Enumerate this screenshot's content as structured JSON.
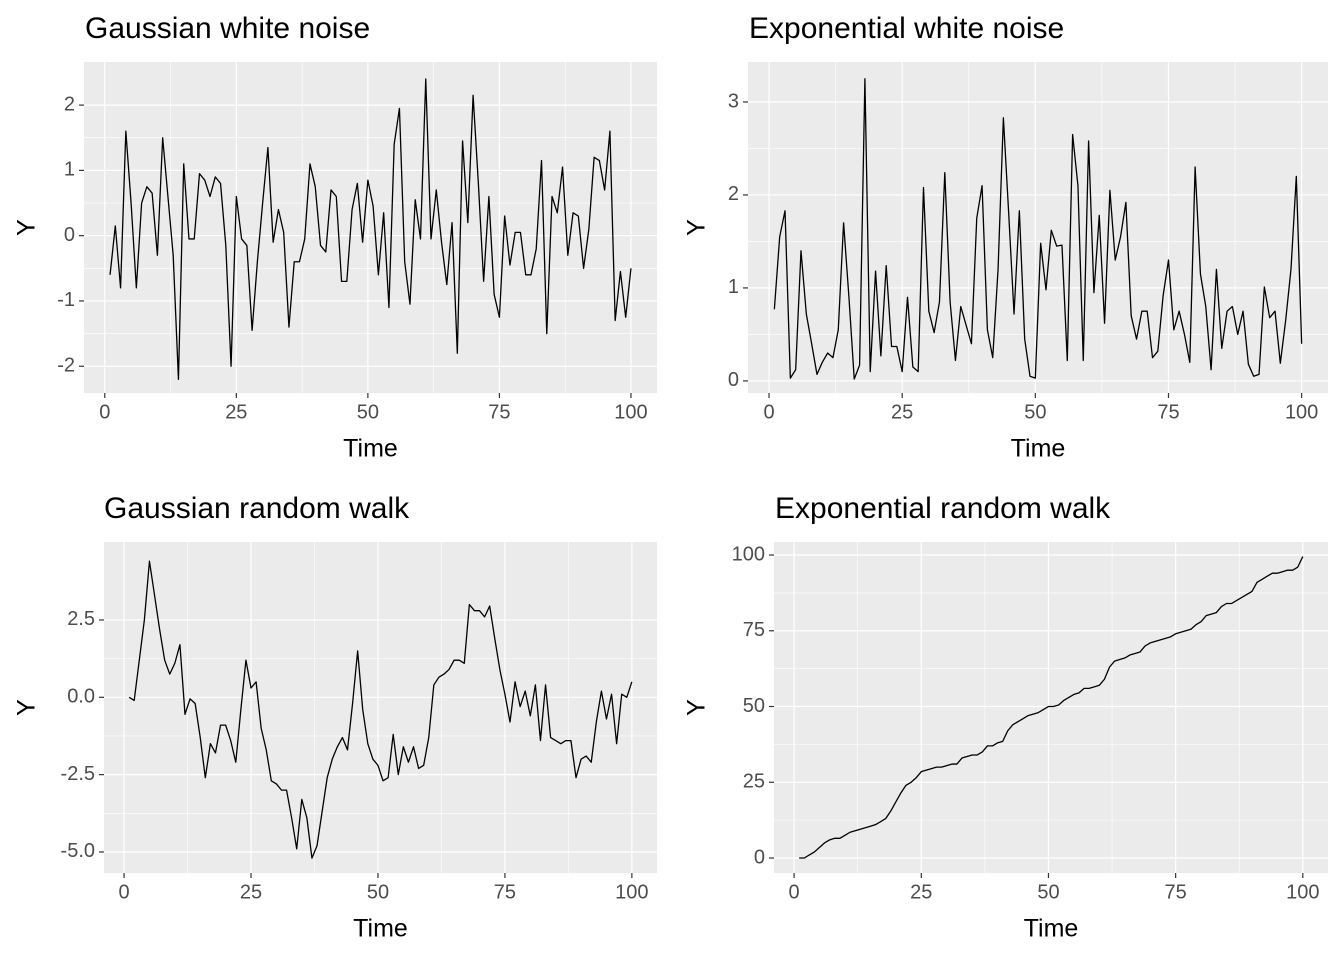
{
  "chart_data": [
    {
      "type": "line",
      "title": "Gaussian white noise",
      "x_label": "Time",
      "y_label": "Y",
      "color": "#000000",
      "grid": true,
      "x": [
        1,
        2,
        3,
        4,
        5,
        6,
        7,
        8,
        9,
        10,
        11,
        12,
        13,
        14,
        15,
        16,
        17,
        18,
        19,
        20,
        21,
        22,
        23,
        24,
        25,
        26,
        27,
        28,
        29,
        30,
        31,
        32,
        33,
        34,
        35,
        36,
        37,
        38,
        39,
        40,
        41,
        42,
        43,
        44,
        45,
        46,
        47,
        48,
        49,
        50,
        51,
        52,
        53,
        54,
        55,
        56,
        57,
        58,
        59,
        60,
        61,
        62,
        63,
        64,
        65,
        66,
        67,
        68,
        69,
        70,
        71,
        72,
        73,
        74,
        75,
        76,
        77,
        78,
        79,
        80,
        81,
        82,
        83,
        84,
        85,
        86,
        87,
        88,
        89,
        90,
        91,
        92,
        93,
        94,
        95,
        96,
        97,
        98,
        99,
        100
      ],
      "values": [
        -0.6,
        0.15,
        -0.8,
        1.6,
        0.5,
        -0.8,
        0.5,
        0.75,
        0.65,
        -0.3,
        1.5,
        0.6,
        -0.3,
        -2.2,
        1.1,
        -0.05,
        -0.05,
        0.95,
        0.85,
        0.6,
        0.9,
        0.8,
        -0.15,
        -2.0,
        0.6,
        -0.05,
        -0.15,
        -1.45,
        -0.4,
        0.5,
        1.35,
        -0.1,
        0.4,
        0.05,
        -1.4,
        -0.4,
        -0.4,
        -0.05,
        1.1,
        0.75,
        -0.15,
        -0.25,
        0.7,
        0.6,
        -0.7,
        -0.7,
        0.4,
        0.8,
        -0.1,
        0.85,
        0.45,
        -0.6,
        0.35,
        -1.1,
        1.4,
        1.95,
        -0.4,
        -1.05,
        0.55,
        -0.05,
        2.4,
        -0.05,
        0.7,
        -0.1,
        -0.75,
        0.2,
        -1.8,
        1.45,
        0.2,
        2.15,
        0.8,
        -0.7,
        0.6,
        -0.9,
        -1.25,
        0.3,
        -0.45,
        0.05,
        0.05,
        -0.6,
        -0.6,
        -0.2,
        1.15,
        -1.5,
        0.6,
        0.35,
        1.05,
        -0.3,
        0.35,
        0.3,
        -0.5,
        0.1,
        1.2,
        1.15,
        0.7,
        1.6,
        -1.3,
        -0.55,
        -1.25,
        -0.5
      ],
      "xlim": [
        -3.95,
        104.95
      ],
      "xticks": [
        0,
        25,
        50,
        75,
        100
      ],
      "ylim": [
        -2.41,
        2.66
      ],
      "yticks": [
        -2,
        -1,
        0,
        1,
        2
      ]
    },
    {
      "type": "line",
      "title": "Exponential white noise",
      "x_label": "Time",
      "y_label": "Y",
      "color": "#000000",
      "grid": true,
      "x": [
        1,
        2,
        3,
        4,
        5,
        6,
        7,
        8,
        9,
        10,
        11,
        12,
        13,
        14,
        15,
        16,
        17,
        18,
        19,
        20,
        21,
        22,
        23,
        24,
        25,
        26,
        27,
        28,
        29,
        30,
        31,
        32,
        33,
        34,
        35,
        36,
        37,
        38,
        39,
        40,
        41,
        42,
        43,
        44,
        45,
        46,
        47,
        48,
        49,
        50,
        51,
        52,
        53,
        54,
        55,
        56,
        57,
        58,
        59,
        60,
        61,
        62,
        63,
        64,
        65,
        66,
        67,
        68,
        69,
        70,
        71,
        72,
        73,
        74,
        75,
        76,
        77,
        78,
        79,
        80,
        81,
        82,
        83,
        84,
        85,
        86,
        87,
        88,
        89,
        90,
        91,
        92,
        93,
        94,
        95,
        96,
        97,
        98,
        99,
        100
      ],
      "values": [
        0.77,
        1.55,
        1.83,
        0.03,
        0.12,
        1.4,
        0.72,
        0.4,
        0.07,
        0.2,
        0.3,
        0.25,
        0.55,
        1.7,
        0.9,
        0.02,
        0.17,
        3.25,
        0.1,
        1.18,
        0.27,
        1.24,
        0.37,
        0.37,
        0.1,
        0.9,
        0.15,
        0.1,
        2.08,
        0.75,
        0.52,
        0.85,
        2.24,
        0.85,
        0.22,
        0.8,
        0.6,
        0.4,
        1.75,
        2.1,
        0.55,
        0.25,
        1.2,
        2.83,
        1.8,
        0.72,
        1.83,
        0.45,
        0.05,
        0.03,
        1.48,
        0.98,
        1.62,
        1.45,
        1.46,
        0.22,
        2.65,
        2.1,
        0.22,
        2.58,
        0.95,
        1.78,
        0.62,
        2.05,
        1.3,
        1.55,
        1.92,
        0.7,
        0.45,
        0.75,
        0.75,
        0.25,
        0.32,
        0.92,
        1.3,
        0.55,
        0.75,
        0.5,
        0.2,
        2.3,
        1.15,
        0.8,
        0.12,
        1.2,
        0.35,
        0.75,
        0.8,
        0.5,
        0.75,
        0.18,
        0.05,
        0.07,
        1.01,
        0.68,
        0.75,
        0.19,
        0.65,
        1.2,
        2.2,
        0.4
      ],
      "xlim": [
        -3.95,
        104.95
      ],
      "xticks": [
        0,
        25,
        50,
        75,
        100
      ],
      "ylim": [
        -0.13,
        3.43
      ],
      "yticks": [
        0,
        1,
        2,
        3
      ]
    },
    {
      "type": "line",
      "title": "Gaussian random walk",
      "x_label": "Time",
      "y_label": "Y",
      "color": "#000000",
      "grid": true,
      "x": [
        1,
        2,
        3,
        4,
        5,
        6,
        7,
        8,
        9,
        10,
        11,
        12,
        13,
        14,
        15,
        16,
        17,
        18,
        19,
        20,
        21,
        22,
        23,
        24,
        25,
        26,
        27,
        28,
        29,
        30,
        31,
        32,
        33,
        34,
        35,
        36,
        37,
        38,
        39,
        40,
        41,
        42,
        43,
        44,
        45,
        46,
        47,
        48,
        49,
        50,
        51,
        52,
        53,
        54,
        55,
        56,
        57,
        58,
        59,
        60,
        61,
        62,
        63,
        64,
        65,
        66,
        67,
        68,
        69,
        70,
        71,
        72,
        73,
        74,
        75,
        76,
        77,
        78,
        79,
        80,
        81,
        82,
        83,
        84,
        85,
        86,
        87,
        88,
        89,
        90,
        91,
        92,
        93,
        94,
        95,
        96,
        97,
        98,
        99,
        100
      ],
      "values": [
        0,
        -0.1,
        1.2,
        2.5,
        4.4,
        3.3,
        2.2,
        1.2,
        0.75,
        1.1,
        1.7,
        -0.55,
        -0.05,
        -0.2,
        -1.3,
        -2.6,
        -1.5,
        -1.8,
        -0.9,
        -0.9,
        -1.4,
        -2.1,
        -0.4,
        1.2,
        0.3,
        0.5,
        -1.0,
        -1.7,
        -2.7,
        -2.8,
        -3.0,
        -3.0,
        -3.9,
        -4.9,
        -3.3,
        -3.9,
        -5.2,
        -4.8,
        -3.7,
        -2.6,
        -2.0,
        -1.6,
        -1.3,
        -1.7,
        -0.2,
        1.5,
        -0.4,
        -1.5,
        -2.0,
        -2.2,
        -2.7,
        -2.6,
        -1.2,
        -2.5,
        -1.6,
        -2.1,
        -1.6,
        -2.3,
        -2.2,
        -1.3,
        0.4,
        0.65,
        0.75,
        0.9,
        1.2,
        1.2,
        1.1,
        3.0,
        2.8,
        2.8,
        2.6,
        2.95,
        1.9,
        0.9,
        0.1,
        -0.8,
        0.5,
        -0.3,
        0.2,
        -0.6,
        0.4,
        -1.4,
        0.4,
        -1.3,
        -1.4,
        -1.5,
        -1.4,
        -1.4,
        -2.6,
        -2.0,
        -1.9,
        -2.1,
        -0.8,
        0.2,
        -0.7,
        0.1,
        -1.5,
        0.1,
        0.0,
        0.5
      ],
      "xlim": [
        -3.95,
        104.95
      ],
      "xticks": [
        0,
        25,
        50,
        75,
        100
      ],
      "ylim": [
        -5.68,
        5.02
      ],
      "yticks": [
        {
          "value": -5,
          "label": "-5.0"
        },
        -2.5,
        {
          "value": 0,
          "label": "0.0"
        },
        2.5
      ]
    },
    {
      "type": "line",
      "title": "Exponential random walk",
      "x_label": "Time",
      "y_label": "Y",
      "color": "#000000",
      "grid": true,
      "x": [
        1,
        2,
        3,
        4,
        5,
        6,
        7,
        8,
        9,
        10,
        11,
        12,
        13,
        14,
        15,
        16,
        17,
        18,
        19,
        20,
        21,
        22,
        23,
        24,
        25,
        26,
        27,
        28,
        29,
        30,
        31,
        32,
        33,
        34,
        35,
        36,
        37,
        38,
        39,
        40,
        41,
        42,
        43,
        44,
        45,
        46,
        47,
        48,
        49,
        50,
        51,
        52,
        53,
        54,
        55,
        56,
        57,
        58,
        59,
        60,
        61,
        62,
        63,
        64,
        65,
        66,
        67,
        68,
        69,
        70,
        71,
        72,
        73,
        74,
        75,
        76,
        77,
        78,
        79,
        80,
        81,
        82,
        83,
        84,
        85,
        86,
        87,
        88,
        89,
        90,
        91,
        92,
        93,
        94,
        95,
        96,
        97,
        98,
        99,
        100
      ],
      "values": [
        0,
        0,
        1,
        2,
        3.5,
        5,
        6,
        6.5,
        6.5,
        7.5,
        8.5,
        9,
        9.5,
        10,
        10.5,
        11,
        12,
        13,
        15.5,
        18.5,
        21.5,
        24,
        25,
        26.5,
        28.5,
        29,
        29.5,
        30,
        30,
        30.5,
        31,
        31,
        33,
        33.5,
        34,
        34,
        35,
        37,
        37,
        38,
        38.5,
        42,
        44,
        45,
        46,
        47,
        47.5,
        48,
        49,
        50,
        50,
        50.5,
        52,
        53,
        54,
        54.5,
        56,
        56,
        56.5,
        57,
        59,
        63,
        65,
        65.5,
        66,
        67,
        67.5,
        68,
        70,
        71,
        71.5,
        72,
        72.5,
        73,
        74,
        74.5,
        75,
        75.5,
        77,
        78,
        80,
        80.5,
        81,
        83,
        84,
        84,
        85,
        86,
        87,
        88,
        91,
        92,
        93,
        94,
        94,
        94.5,
        95,
        95,
        96,
        99.5
      ],
      "xlim": [
        -3.95,
        104.95
      ],
      "xticks": [
        0,
        25,
        50,
        75,
        100
      ],
      "ylim": [
        -4.95,
        104.3
      ],
      "yticks": [
        0,
        25,
        50,
        75,
        100
      ]
    }
  ]
}
